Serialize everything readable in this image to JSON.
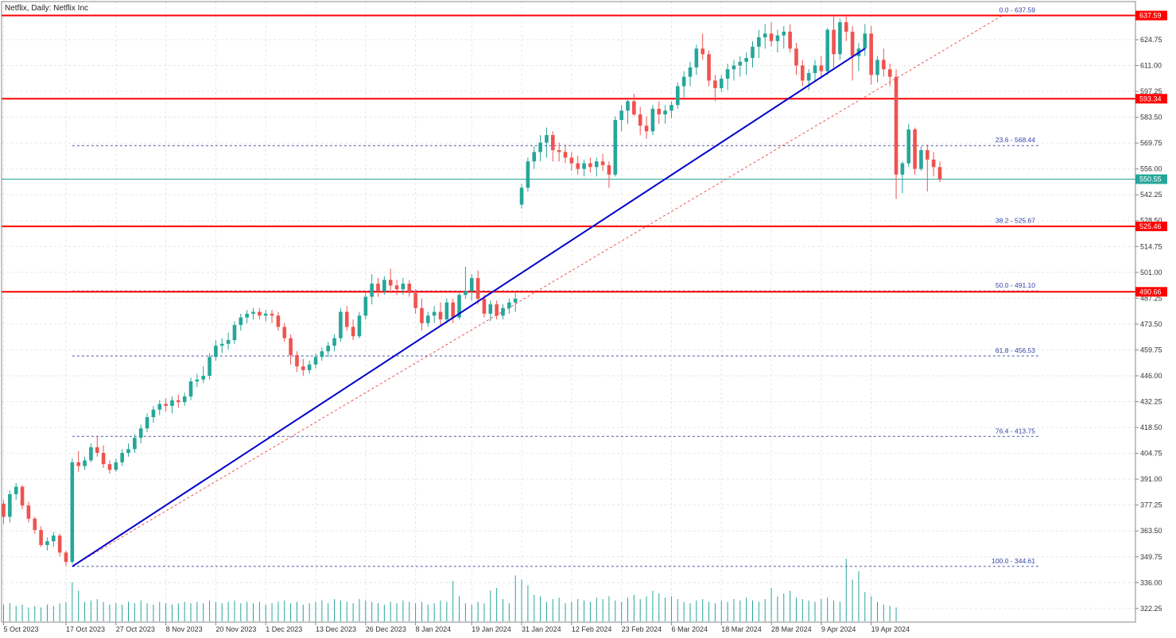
{
  "title": "Netflix, Daily:  Netflix Inc",
  "chart_data": {
    "type": "candlestick",
    "symbol": "Netflix",
    "timeframe": "Daily",
    "ylim": [
      315,
      645
    ],
    "grid": true,
    "y_ticks": [
      "322.25",
      "336.00",
      "349.75",
      "363.50",
      "377.25",
      "391.00",
      "404.75",
      "418.50",
      "432.25",
      "446.00",
      "459.75",
      "473.50",
      "487.25",
      "501.00",
      "514.75",
      "528.50",
      "542.25",
      "556.00",
      "569.75",
      "583.50",
      "597.25",
      "611.00",
      "624.75"
    ],
    "x_ticks": [
      {
        "label": "5 Oct 2023",
        "i": 0
      },
      {
        "label": "17 Oct 2023",
        "i": 10
      },
      {
        "label": "27 Oct 2023",
        "i": 18
      },
      {
        "label": "8 Nov 2023",
        "i": 26
      },
      {
        "label": "20 Nov 2023",
        "i": 34
      },
      {
        "label": "1 Dec 2023",
        "i": 42
      },
      {
        "label": "13 Dec 2023",
        "i": 50
      },
      {
        "label": "26 Dec 2023",
        "i": 58
      },
      {
        "label": "8 Jan 2024",
        "i": 66
      },
      {
        "label": "19 Jan 2024",
        "i": 75
      },
      {
        "label": "31 Jan 2024",
        "i": 83
      },
      {
        "label": "12 Feb 2024",
        "i": 91
      },
      {
        "label": "23 Feb 2024",
        "i": 99
      },
      {
        "label": "6 Mar 2024",
        "i": 107
      },
      {
        "label": "18 Mar 2024",
        "i": 115
      },
      {
        "label": "28 Mar 2024",
        "i": 123
      },
      {
        "label": "9 Apr 2024",
        "i": 131
      },
      {
        "label": "19 Apr 2024",
        "i": 139
      }
    ],
    "ohlc": [
      [
        378,
        380,
        367,
        371
      ],
      [
        371,
        385,
        368,
        383
      ],
      [
        383,
        389,
        380,
        387
      ],
      [
        387,
        388,
        375,
        377
      ],
      [
        377,
        379,
        368,
        370
      ],
      [
        370,
        371,
        362,
        364
      ],
      [
        364,
        366,
        355,
        356
      ],
      [
        356,
        360,
        353,
        358
      ],
      [
        358,
        363,
        355,
        361
      ],
      [
        361,
        362,
        350,
        352
      ],
      [
        352,
        353,
        344.6,
        347
      ],
      [
        347,
        402,
        346,
        400
      ],
      [
        400,
        406,
        395,
        398
      ],
      [
        398,
        403,
        396,
        401
      ],
      [
        401,
        410,
        400,
        408
      ],
      [
        408,
        414,
        403,
        405
      ],
      [
        405,
        409,
        397,
        399
      ],
      [
        399,
        401,
        394,
        396
      ],
      [
        396,
        402,
        395,
        400
      ],
      [
        400,
        407,
        398,
        405
      ],
      [
        405,
        410,
        403,
        407
      ],
      [
        407,
        415,
        405,
        413
      ],
      [
        413,
        420,
        410,
        418
      ],
      [
        418,
        426,
        416,
        424
      ],
      [
        424,
        430,
        421,
        428
      ],
      [
        428,
        433,
        425,
        431
      ],
      [
        431,
        434,
        427,
        430
      ],
      [
        430,
        435,
        426,
        433
      ],
      [
        433,
        436,
        429,
        432
      ],
      [
        432,
        437,
        430,
        435
      ],
      [
        435,
        445,
        433,
        443
      ],
      [
        443,
        447,
        440,
        444
      ],
      [
        444,
        451,
        442,
        446
      ],
      [
        446,
        458,
        444,
        456
      ],
      [
        456,
        465,
        454,
        462
      ],
      [
        462,
        466,
        458,
        463
      ],
      [
        463,
        469,
        460,
        465
      ],
      [
        465,
        475,
        463,
        473
      ],
      [
        473,
        479,
        470,
        477
      ],
      [
        477,
        481,
        474,
        479
      ],
      [
        479,
        482,
        476,
        480
      ],
      [
        480,
        482,
        476,
        478
      ],
      [
        478,
        481,
        475,
        479
      ],
      [
        479,
        481,
        474,
        478
      ],
      [
        478,
        480,
        470,
        472
      ],
      [
        472,
        474,
        464,
        466
      ],
      [
        466,
        468,
        452,
        457
      ],
      [
        457,
        459,
        448,
        451
      ],
      [
        451,
        455,
        446,
        449
      ],
      [
        449,
        454,
        447,
        452
      ],
      [
        452,
        458,
        450,
        456
      ],
      [
        456,
        461,
        454,
        459
      ],
      [
        459,
        464,
        456,
        462
      ],
      [
        462,
        468,
        459,
        466
      ],
      [
        466,
        482,
        464,
        480
      ],
      [
        480,
        483,
        470,
        472
      ],
      [
        472,
        476,
        465,
        467
      ],
      [
        467,
        480,
        466,
        478
      ],
      [
        478,
        490,
        476,
        488
      ],
      [
        488,
        500,
        484,
        495
      ],
      [
        495,
        498,
        488,
        491
      ],
      [
        491,
        499,
        489,
        497
      ],
      [
        497,
        503,
        490,
        494
      ],
      [
        494,
        497,
        489,
        492
      ],
      [
        492,
        498,
        489,
        495
      ],
      [
        495,
        497,
        488,
        490
      ],
      [
        490,
        492,
        479,
        482
      ],
      [
        482,
        487,
        470,
        474
      ],
      [
        474,
        480,
        472,
        478
      ],
      [
        478,
        483,
        474,
        480
      ],
      [
        480,
        485,
        473,
        476
      ],
      [
        476,
        487,
        474,
        485
      ],
      [
        485,
        487,
        474,
        477
      ],
      [
        477,
        491,
        476,
        489
      ],
      [
        489,
        504,
        487,
        491
      ],
      [
        491,
        500,
        486,
        498
      ],
      [
        498,
        502,
        484,
        487
      ],
      [
        487,
        489,
        477,
        479
      ],
      [
        479,
        486,
        475,
        484
      ],
      [
        484,
        486,
        476,
        478
      ],
      [
        478,
        484,
        476,
        482
      ],
      [
        482,
        487,
        479,
        485
      ],
      [
        485,
        490,
        480,
        487
      ],
      [
        537,
        548,
        535,
        546
      ],
      [
        546,
        562,
        544,
        560
      ],
      [
        560,
        568,
        556,
        565
      ],
      [
        565,
        574,
        560,
        570
      ],
      [
        570,
        578,
        562,
        574
      ],
      [
        574,
        576,
        560,
        566
      ],
      [
        566,
        570,
        560,
        565
      ],
      [
        565,
        569,
        559,
        562
      ],
      [
        562,
        565,
        555,
        559
      ],
      [
        559,
        563,
        553,
        556
      ],
      [
        556,
        561,
        552,
        559
      ],
      [
        559,
        562,
        554,
        557
      ],
      [
        557,
        562,
        552,
        560
      ],
      [
        560,
        564,
        555,
        558
      ],
      [
        558,
        560,
        546,
        553
      ],
      [
        553,
        584,
        552,
        582
      ],
      [
        582,
        590,
        576,
        587
      ],
      [
        587,
        594,
        580,
        592
      ],
      [
        592,
        596,
        584,
        585
      ],
      [
        585,
        589,
        574,
        579
      ],
      [
        579,
        584,
        572,
        576
      ],
      [
        576,
        590,
        574,
        588
      ],
      [
        588,
        592,
        580,
        585
      ],
      [
        585,
        590,
        580,
        587
      ],
      [
        587,
        592,
        583,
        590
      ],
      [
        590,
        602,
        588,
        600
      ],
      [
        600,
        608,
        594,
        605
      ],
      [
        605,
        613,
        600,
        610
      ],
      [
        610,
        622,
        606,
        620
      ],
      [
        620,
        628,
        614,
        617
      ],
      [
        617,
        619,
        600,
        603
      ],
      [
        603,
        606,
        592,
        599
      ],
      [
        599,
        606,
        597,
        604
      ],
      [
        604,
        612,
        598,
        609
      ],
      [
        609,
        614,
        603,
        611
      ],
      [
        611,
        616,
        605,
        613
      ],
      [
        613,
        618,
        606,
        615
      ],
      [
        615,
        624,
        610,
        621
      ],
      [
        621,
        630,
        615,
        626
      ],
      [
        626,
        633,
        620,
        628
      ],
      [
        628,
        634,
        621,
        624
      ],
      [
        624,
        630,
        618,
        627
      ],
      [
        627,
        632,
        620,
        629
      ],
      [
        629,
        633,
        618,
        620
      ],
      [
        620,
        623,
        606,
        611
      ],
      [
        611,
        614,
        600,
        603
      ],
      [
        603,
        609,
        598,
        607
      ],
      [
        607,
        614,
        603,
        611
      ],
      [
        611,
        616,
        604,
        608
      ],
      [
        608,
        631,
        606,
        630
      ],
      [
        630,
        637.6,
        610,
        617
      ],
      [
        617,
        636,
        614,
        634
      ],
      [
        634,
        637,
        624,
        629
      ],
      [
        629,
        632,
        603,
        616
      ],
      [
        616,
        623,
        608,
        620
      ],
      [
        620,
        633,
        616,
        628
      ],
      [
        628,
        632,
        601,
        606
      ],
      [
        606,
        616,
        602,
        614
      ],
      [
        614,
        620,
        605,
        609
      ],
      [
        609,
        612,
        600,
        605
      ],
      [
        605,
        609,
        540,
        553
      ],
      [
        553,
        560,
        543,
        559
      ],
      [
        559,
        580,
        557,
        577
      ],
      [
        577,
        578,
        553,
        556
      ],
      [
        556,
        568,
        555,
        566
      ],
      [
        566,
        569,
        544,
        561
      ],
      [
        561,
        565,
        552,
        557
      ],
      [
        557,
        560,
        549,
        550.55
      ]
    ],
    "volume": [
      12,
      13,
      11,
      12,
      10,
      11,
      10,
      12,
      11,
      13,
      14,
      28,
      22,
      14,
      15,
      16,
      14,
      12,
      13,
      12,
      14,
      13,
      15,
      13,
      12,
      14,
      13,
      12,
      13,
      14,
      13,
      14,
      13,
      15,
      14,
      13,
      14,
      15,
      13,
      14,
      13,
      14,
      12,
      13,
      14,
      15,
      13,
      14,
      12,
      13,
      14,
      15,
      13,
      16,
      15,
      14,
      13,
      16,
      15,
      14,
      13,
      12,
      14,
      13,
      15,
      14,
      13,
      14,
      12,
      13,
      15,
      14,
      29,
      18,
      13,
      12,
      14,
      13,
      22,
      24,
      16,
      13,
      33,
      30,
      26,
      19,
      18,
      14,
      16,
      17,
      13,
      14,
      16,
      15,
      14,
      17,
      16,
      18,
      15,
      14,
      17,
      19,
      16,
      18,
      22,
      20,
      17,
      18,
      16,
      14,
      13,
      15,
      16,
      14,
      13,
      15,
      14,
      16,
      15,
      17,
      15,
      14,
      16,
      24,
      18,
      20,
      22,
      17,
      16,
      15,
      14,
      16,
      17,
      15,
      14,
      45,
      30,
      36,
      21,
      18,
      14,
      12,
      11,
      10
    ],
    "horizontal_levels": [
      {
        "label": "637.59",
        "value": 637.59
      },
      {
        "label": "593.34",
        "value": 593.34
      },
      {
        "label": "525.46",
        "value": 525.46
      },
      {
        "label": "490.66",
        "value": 490.66
      }
    ],
    "current_price": {
      "label": "550.55",
      "value": 550.55
    },
    "fibonacci": [
      {
        "label": "0.0 - 637.59",
        "value": 637.59
      },
      {
        "label": "23.6 - 568.44",
        "value": 568.44
      },
      {
        "label": "38.2 - 525.67",
        "value": 525.67
      },
      {
        "label": "50.0 - 491.10",
        "value": 491.1
      },
      {
        "label": "61.8 - 456.53",
        "value": 456.53
      },
      {
        "label": "76.4 - 413.75",
        "value": 413.75
      },
      {
        "label": "100.0 - 344.61",
        "value": 344.61
      }
    ],
    "trendline": {
      "from": {
        "i": 11,
        "value": 344.6
      },
      "to": {
        "i": 138,
        "value": 620
      }
    },
    "fib_line": {
      "from": {
        "i": 11,
        "value": 344.6
      },
      "to": {
        "i": 160,
        "value": 637.59
      }
    },
    "colors": {
      "bull": "#26a69a",
      "bear": "#ef5350",
      "level": "#ff0000",
      "trendline": "#0000cc",
      "fib": "#4a56a6",
      "current": "#26a69a",
      "volume": "#26a69a",
      "grid": "#e6e6e6"
    }
  }
}
